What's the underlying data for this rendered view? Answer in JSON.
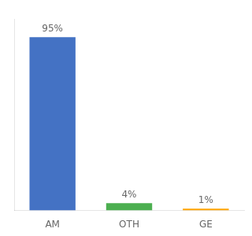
{
  "chart_data": {
    "type": "bar",
    "categories": [
      "AM",
      "OTH",
      "GE"
    ],
    "values": [
      95,
      4,
      1
    ],
    "value_labels": [
      "95%",
      "4%",
      "1%"
    ],
    "colors": [
      "#4472c4",
      "#4caf50",
      "#ffa500"
    ],
    "ylim": [
      0,
      105
    ],
    "data_labels": true,
    "tick_labels": "x",
    "grid": false
  }
}
